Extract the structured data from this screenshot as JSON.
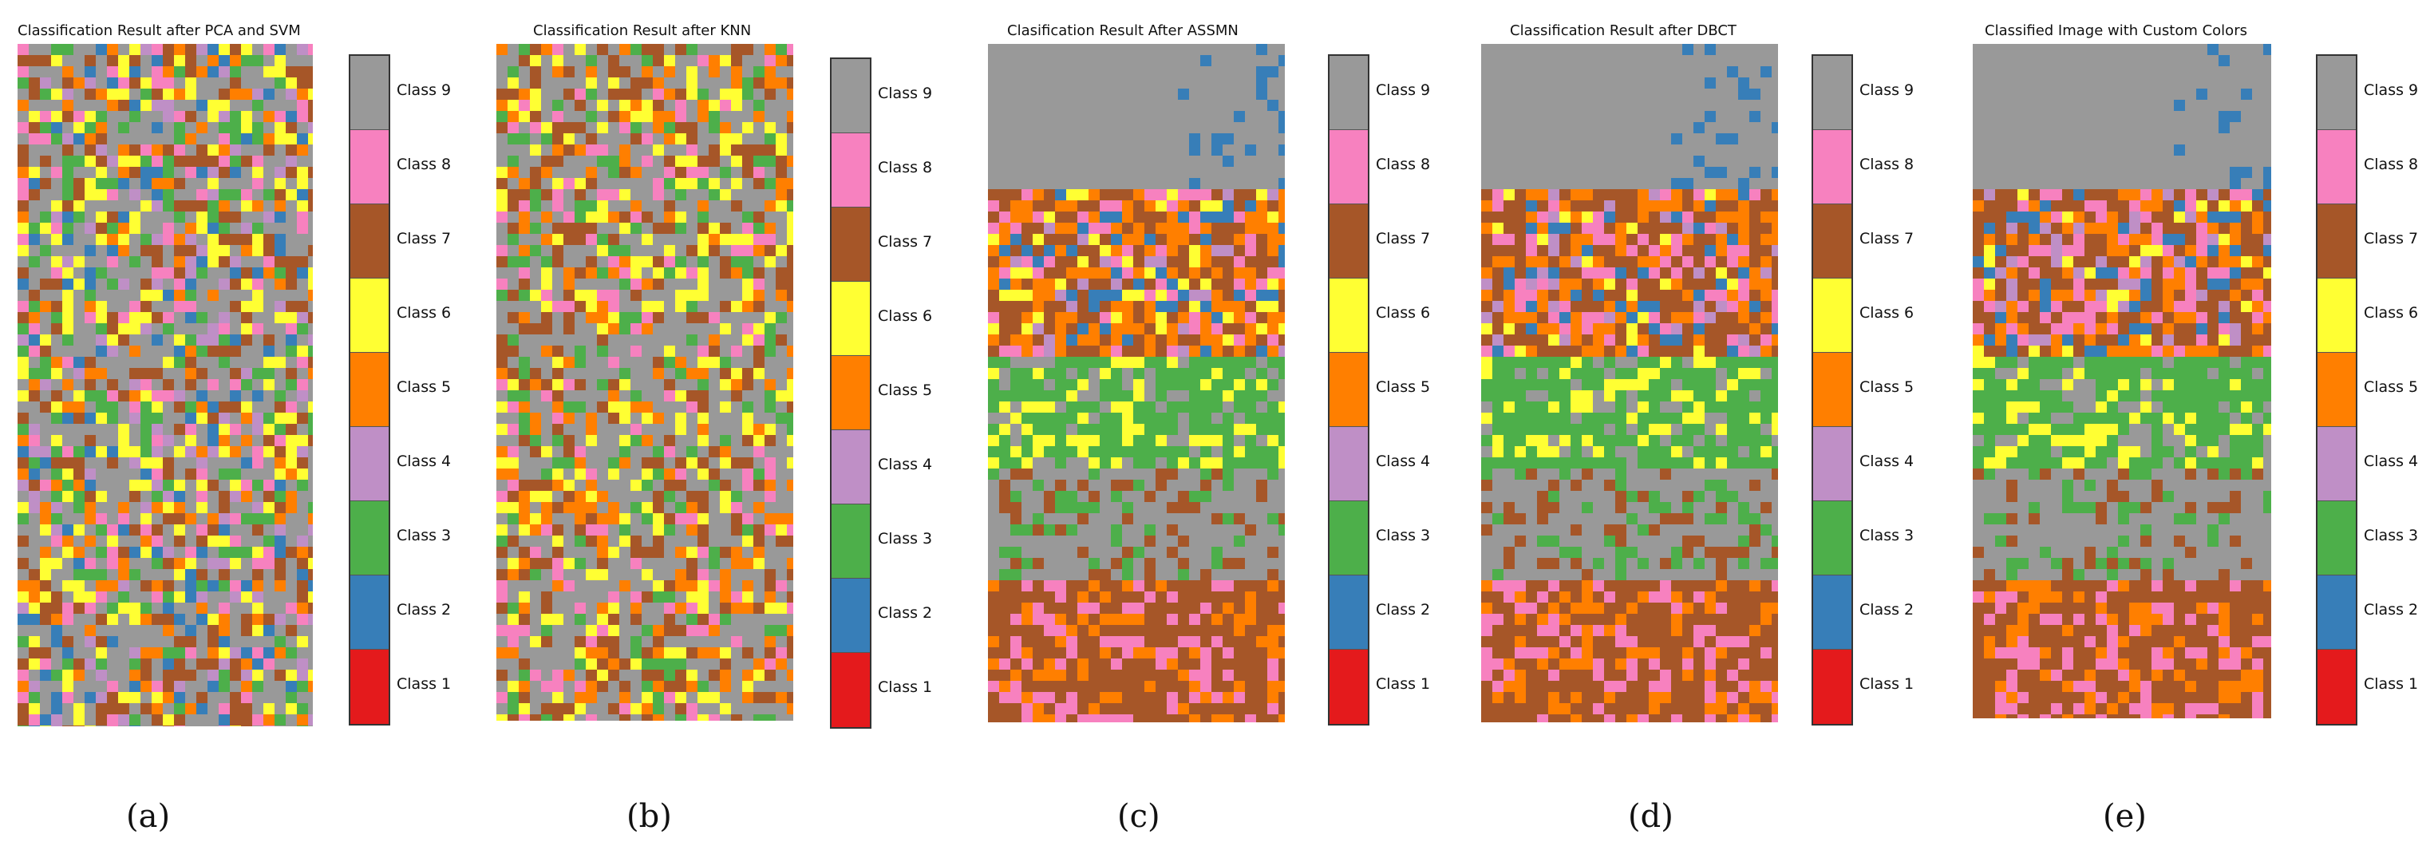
{
  "figure": {
    "panels": [
      {
        "id": "a",
        "title": "Classification Result after PCA and SVM",
        "caption": "(a)",
        "dominant_classes": [
          9,
          7,
          6,
          3,
          2,
          8,
          5,
          4
        ]
      },
      {
        "id": "b",
        "title": "Classification Result after KNN",
        "caption": "(b)",
        "dominant_classes": [
          9,
          7,
          6,
          5,
          3,
          8
        ]
      },
      {
        "id": "c",
        "title": "Clasification Result After ASSMN",
        "caption": "(c)",
        "dominant_classes": [
          9,
          7,
          3,
          5,
          2,
          8,
          6,
          4
        ]
      },
      {
        "id": "d",
        "title": "Classification Result after DBCT",
        "caption": "(d)",
        "dominant_classes": [
          9,
          7,
          3,
          5,
          2,
          8,
          6,
          4
        ]
      },
      {
        "id": "e",
        "title": "Classified Image with Custom Colors",
        "caption": "(e)",
        "dominant_classes": [
          9,
          7,
          3,
          5,
          2,
          8,
          6,
          4
        ]
      }
    ],
    "legend": [
      {
        "label": "Class 9",
        "color": "#999999"
      },
      {
        "label": "Class 8",
        "color": "#f781bf"
      },
      {
        "label": "Class 7",
        "color": "#a65628"
      },
      {
        "label": "Class 6",
        "color": "#ffff33"
      },
      {
        "label": "Class 5",
        "color": "#ff7f00"
      },
      {
        "label": "Class 4",
        "color": "#bf8fc6"
      },
      {
        "label": "Class 3",
        "color": "#4daf4a"
      },
      {
        "label": "Class 2",
        "color": "#377eb8"
      },
      {
        "label": "Class 1",
        "color": "#e41a1c"
      }
    ]
  }
}
